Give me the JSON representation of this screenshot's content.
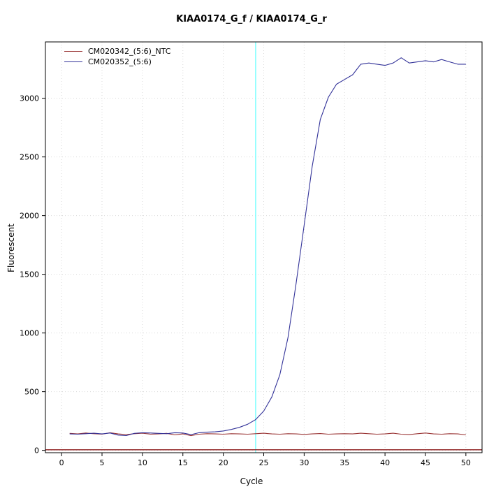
{
  "title": "KIAA0174_G_f / KIAA0174_G_r",
  "chart_data": {
    "type": "line",
    "title": "KIAA0174_G_f / KIAA0174_G_r",
    "xlabel": "Cycle",
    "ylabel": "Fluorescent",
    "xlim": [
      -2,
      52
    ],
    "ylim": [
      -20,
      3480
    ],
    "x_ticks": [
      0,
      5,
      10,
      15,
      20,
      25,
      30,
      35,
      40,
      45,
      50
    ],
    "y_ticks": [
      0,
      500,
      1000,
      1500,
      2000,
      2500,
      3000
    ],
    "grid": true,
    "grid_color": "#d9d9d9",
    "threshold_line": {
      "x": 24,
      "color": "#7dffff"
    },
    "baseline": {
      "y": 5,
      "color": "#8b1a1a"
    },
    "legend": [
      {
        "label": "CM020342_(5:6)_NTC",
        "color": "#993333"
      },
      {
        "label": "CM020352_(5:6)",
        "color": "#333399"
      }
    ],
    "x": [
      1,
      2,
      3,
      4,
      5,
      6,
      7,
      8,
      9,
      10,
      11,
      12,
      13,
      14,
      15,
      16,
      17,
      18,
      19,
      20,
      21,
      22,
      23,
      24,
      25,
      26,
      27,
      28,
      29,
      30,
      31,
      32,
      33,
      34,
      35,
      36,
      37,
      38,
      39,
      40,
      41,
      42,
      43,
      44,
      45,
      46,
      47,
      48,
      49,
      50
    ],
    "series": [
      {
        "name": "CM020342_(5:6)_NTC",
        "color": "#993333",
        "values": [
          145,
          140,
          148,
          142,
          138,
          150,
          140,
          135,
          142,
          146,
          138,
          140,
          145,
          132,
          140,
          125,
          138,
          142,
          140,
          138,
          142,
          140,
          138,
          142,
          146,
          140,
          138,
          142,
          140,
          136,
          140,
          143,
          138,
          140,
          142,
          140,
          146,
          142,
          138,
          140,
          146,
          138,
          134,
          142,
          148,
          140,
          138,
          142,
          140,
          132
        ]
      },
      {
        "name": "CM020352_(5:6)",
        "color": "#333399",
        "values": [
          140,
          138,
          142,
          146,
          140,
          148,
          130,
          126,
          145,
          150,
          148,
          145,
          142,
          150,
          148,
          134,
          150,
          155,
          158,
          165,
          178,
          196,
          222,
          262,
          335,
          455,
          645,
          960,
          1420,
          1920,
          2420,
          2820,
          3010,
          3120,
          3160,
          3200,
          3290,
          3300,
          3290,
          3280,
          3300,
          3345,
          3300,
          3310,
          3320,
          3310,
          3330,
          3310,
          3290,
          3290
        ]
      }
    ]
  }
}
